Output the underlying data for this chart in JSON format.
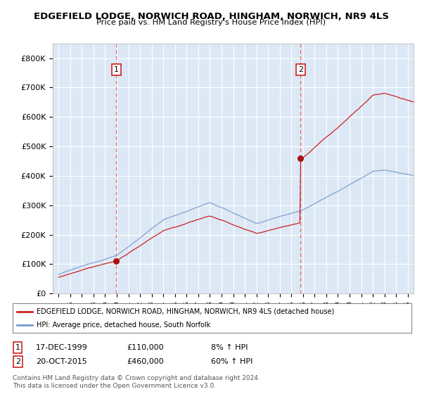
{
  "title": "EDGEFIELD LODGE, NORWICH ROAD, HINGHAM, NORWICH, NR9 4LS",
  "subtitle": "Price paid vs. HM Land Registry's House Price Index (HPI)",
  "legend_line1": "EDGEFIELD LODGE, NORWICH ROAD, HINGHAM, NORWICH, NR9 4LS (detached house)",
  "legend_line2": "HPI: Average price, detached house, South Norfolk",
  "footnote": "Contains HM Land Registry data © Crown copyright and database right 2024.\nThis data is licensed under the Open Government Licence v3.0.",
  "sale1_date": "17-DEC-1999",
  "sale1_price": "£110,000",
  "sale1_hpi": "8% ↑ HPI",
  "sale1_year": 1999.96,
  "sale1_value": 110000,
  "sale2_date": "20-OCT-2015",
  "sale2_price": "£460,000",
  "sale2_hpi": "60% ↑ HPI",
  "sale2_year": 2015.8,
  "sale2_value": 460000,
  "hpi_color": "#7799cc",
  "price_color": "#cc2222",
  "sale_dot_color": "#aa1111",
  "fig_bg": "#ffffff",
  "plot_bg": "#dce8f5",
  "grid_color": "#ffffff",
  "vline_color": "#ee6666",
  "annotation_box_color": "#cc2222",
  "ylim_min": 0,
  "ylim_max": 850000,
  "yticks": [
    0,
    100000,
    200000,
    300000,
    400000,
    500000,
    600000,
    700000,
    800000
  ],
  "ytick_labels": [
    "£0",
    "£100K",
    "£200K",
    "£300K",
    "£400K",
    "£500K",
    "£600K",
    "£700K",
    "£800K"
  ],
  "xmin": 1994.5,
  "xmax": 2025.5
}
